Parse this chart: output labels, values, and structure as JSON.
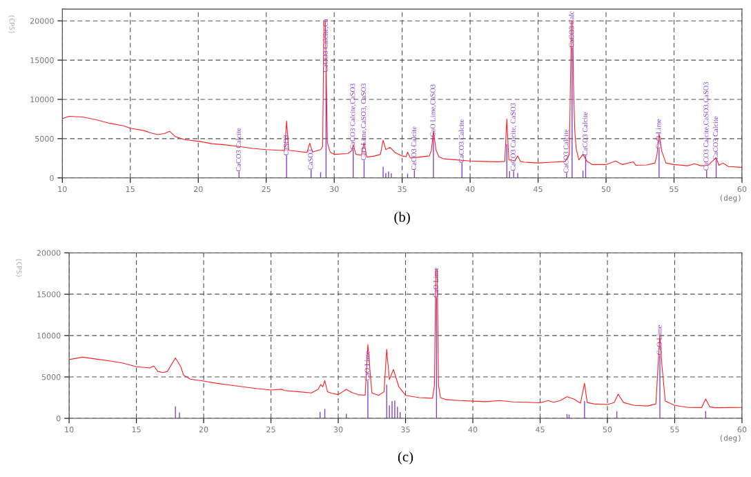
{
  "chart_data": [
    {
      "type": "line",
      "xlabel": "(deg)",
      "ylabel": "(CPS)",
      "xlim": [
        10,
        60
      ],
      "ylim": [
        0,
        21500
      ],
      "xticks": [
        10,
        15,
        20,
        25,
        30,
        35,
        40,
        45,
        50,
        55,
        60
      ],
      "yticks": [
        0,
        5000,
        10000,
        15000,
        20000
      ],
      "grid": true,
      "series": [
        {
          "color": "#ff2020",
          "x": [
            10,
            10.5,
            11.5,
            12.5,
            13.5,
            14.5,
            15,
            16,
            16.5,
            17,
            17.5,
            17.9,
            18.3,
            19,
            20,
            21,
            22,
            23,
            24,
            25,
            26,
            26.35,
            26.5,
            26.65,
            27,
            28,
            28.2,
            28.4,
            29,
            29.15,
            29.25,
            29.3,
            29.35,
            29.5,
            29.7,
            30,
            31,
            31.3,
            31.4,
            31.6,
            32,
            32.2,
            32.4,
            33,
            33.4,
            33.6,
            33.8,
            34.1,
            34.5,
            35,
            35.3,
            35.4,
            35.6,
            36,
            37,
            37.15,
            37.3,
            37.5,
            37.7,
            38,
            39,
            40,
            41,
            42,
            42.55,
            42.7,
            42.85,
            43.3,
            43.5,
            43.7,
            44,
            45,
            46,
            47,
            47.3,
            47.45,
            47.5,
            47.55,
            47.6,
            47.7,
            47.8,
            48,
            48.3,
            48.6,
            49,
            50,
            50.7,
            51.2,
            52,
            52.2,
            53,
            53.6,
            53.75,
            53.9,
            54.1,
            54.4,
            55,
            56,
            56.5,
            57,
            57.5,
            58.1,
            58.3,
            58.6,
            59,
            60
          ],
          "values": [
            7550,
            7850,
            7750,
            7400,
            6950,
            6640,
            6330,
            6030,
            5730,
            5520,
            5640,
            5940,
            5270,
            4880,
            4670,
            4360,
            4210,
            4000,
            3760,
            3600,
            3515,
            3500,
            7240,
            3515,
            3450,
            3240,
            4420,
            3300,
            3600,
            4000,
            20000,
            null,
            20000,
            4500,
            3300,
            3000,
            3100,
            3500,
            4200,
            3000,
            2900,
            4500,
            2650,
            2800,
            3000,
            4800,
            3600,
            3900,
            3200,
            2800,
            2700,
            3300,
            2550,
            2600,
            2800,
            3500,
            5950,
            3500,
            2700,
            2450,
            2300,
            2150,
            2100,
            2050,
            2100,
            7500,
            2300,
            2200,
            2800,
            2100,
            2000,
            1900,
            2000,
            2100,
            3000,
            20000,
            null,
            20000,
            12200,
            6000,
            3750,
            2300,
            3000,
            2100,
            1700,
            1700,
            2150,
            1700,
            2050,
            1600,
            1650,
            1900,
            3000,
            5600,
            3400,
            1900,
            1700,
            1550,
            1800,
            1550,
            1600,
            2600,
            1600,
            1900,
            1450,
            1350
          ]
        },
        {
          "type": "bar",
          "color": "#8040d0",
          "x": [
            23.0,
            26.5,
            28.3,
            29.0,
            29.4,
            31.4,
            32.2,
            33.6,
            33.8,
            34.0,
            34.2,
            35.4,
            35.9,
            37.3,
            39.4,
            42.7,
            42.9,
            43.2,
            43.5,
            47.1,
            47.5,
            48.3,
            48.5,
            53.9,
            57.4,
            58.1
          ],
          "values": [
            800,
            2850,
            1030,
            730,
            13450,
            3600,
            2240,
            1430,
            625,
            810,
            590,
            550,
            990,
            5220,
            1900,
            4300,
            880,
            880,
            625,
            625,
            16600,
            920,
            2830,
            3680,
            920,
            2280
          ]
        }
      ],
      "annotations": [
        {
          "text": "CaCO3 Calcite",
          "x": 23.0,
          "y": 800
        },
        {
          "text": "CaSO3",
          "x": 26.5,
          "y": 2850
        },
        {
          "text": "CaSO3",
          "x": 28.3,
          "y": 1030
        },
        {
          "text": "CaCO3 Calcite,Ca",
          "x": 29.4,
          "y": 13450
        },
        {
          "text": "CaCO3 Calcite,CaSO3",
          "x": 31.4,
          "y": 3600
        },
        {
          "text": "CaO Lime,CaSO3, CaSO3",
          "x": 32.2,
          "y": 2240
        },
        {
          "text": "CaCO3 Calcite",
          "x": 35.9,
          "y": 990
        },
        {
          "text": "CaO Lime,CaSO3",
          "x": 37.3,
          "y": 5220
        },
        {
          "text": "CaCO3 Calcite",
          "x": 39.4,
          "y": 1900
        },
        {
          "text": "CaCO3 Calcite, CaSO3",
          "x": 43.2,
          "y": 880
        },
        {
          "text": "CaCO3 Calcite",
          "x": 47.1,
          "y": 625
        },
        {
          "text": "CaCO3 Calc",
          "x": 47.5,
          "y": 16600
        },
        {
          "text": "CaCO3 Calcite",
          "x": 48.5,
          "y": 2830
        },
        {
          "text": "CaO Lime",
          "x": 53.9,
          "y": 3680
        },
        {
          "text": "CaCO3 Calcite,CaSO3,CaSO3",
          "x": 57.4,
          "y": 920
        },
        {
          "text": "CaCO3 Calcite",
          "x": 58.1,
          "y": 2280
        },
        "(b)"
      ]
    },
    {
      "type": "line",
      "xlabel": "(deg)",
      "ylabel": "(CPS)",
      "xlim": [
        10,
        60
      ],
      "ylim": [
        0,
        20000
      ],
      "xticks": [
        10,
        15,
        20,
        25,
        30,
        35,
        40,
        45,
        50,
        55,
        60
      ],
      "yticks": [
        0,
        5000,
        10000,
        15000,
        20000
      ],
      "grid": true,
      "series": [
        {
          "color": "#ff2020",
          "x": [
            10,
            11,
            12,
            13,
            14,
            15,
            16,
            16.3,
            16.6,
            17,
            17.3,
            17.9,
            18.3,
            18.5,
            19,
            20,
            21,
            22,
            23,
            24,
            25,
            25.8,
            26,
            27,
            28,
            28.5,
            28.7,
            28.85,
            29,
            29.2,
            29.5,
            30,
            30.6,
            31,
            31.5,
            32,
            32.2,
            32.5,
            33,
            33.4,
            33.6,
            33.8,
            34.1,
            34.5,
            35,
            36,
            37,
            37.15,
            37.25,
            37.3,
            37.35,
            37.45,
            37.6,
            38,
            39,
            40,
            41,
            42,
            43,
            44,
            45,
            45.6,
            46,
            46.5,
            47,
            47.5,
            48,
            48.3,
            48.5,
            49,
            50,
            50.5,
            50.8,
            51.2,
            52,
            53,
            53.6,
            53.9,
            54.05,
            54.3,
            55,
            56,
            57,
            57.3,
            57.6,
            58,
            59,
            60
          ],
          "values": [
            7100,
            7390,
            7160,
            6950,
            6670,
            6240,
            6090,
            6320,
            5660,
            5520,
            5660,
            7300,
            6240,
            5230,
            4740,
            4510,
            4220,
            4000,
            3800,
            3590,
            3420,
            3510,
            3360,
            3220,
            3070,
            3510,
            4080,
            3800,
            4570,
            3220,
            3020,
            2870,
            3510,
            3130,
            2850,
            2790,
            8920,
            3060,
            2780,
            3200,
            8330,
            4690,
            5900,
            3820,
            2780,
            2500,
            2430,
            4000,
            18000,
            null,
            18000,
            4000,
            2500,
            2260,
            2150,
            2080,
            2010,
            2150,
            1980,
            1940,
            1880,
            2150,
            1940,
            2150,
            2600,
            2330,
            1840,
            4240,
            1910,
            1740,
            1670,
            1900,
            2920,
            1910,
            1560,
            1490,
            1740,
            10070,
            6420,
            2080,
            1560,
            1320,
            1300,
            2330,
            1390,
            1280,
            1300,
            1320
          ]
        },
        {
          "type": "bar",
          "color": "#8040d0",
          "x": [
            17.9,
            18.2,
            28.65,
            29.0,
            30.6,
            32.2,
            33.6,
            33.8,
            34.0,
            34.2,
            34.4,
            34.6,
            37.3,
            47.0,
            47.15,
            48.3,
            50.7,
            53.9,
            57.3
          ],
          "values": [
            1440,
            720,
            780,
            1150,
            550,
            4510,
            4060,
            1560,
            2080,
            2150,
            1390,
            760,
            14580,
            520,
            450,
            2080,
            870,
            7640,
            870
          ]
        }
      ],
      "annotations": [
        {
          "text": "CaO Lime",
          "x": 32.2,
          "y": 4510
        },
        {
          "text": "CaO Lime",
          "x": 37.3,
          "y": 14580
        },
        {
          "text": "CaO Lime",
          "x": 53.9,
          "y": 7640
        },
        "(c)"
      ]
    }
  ]
}
